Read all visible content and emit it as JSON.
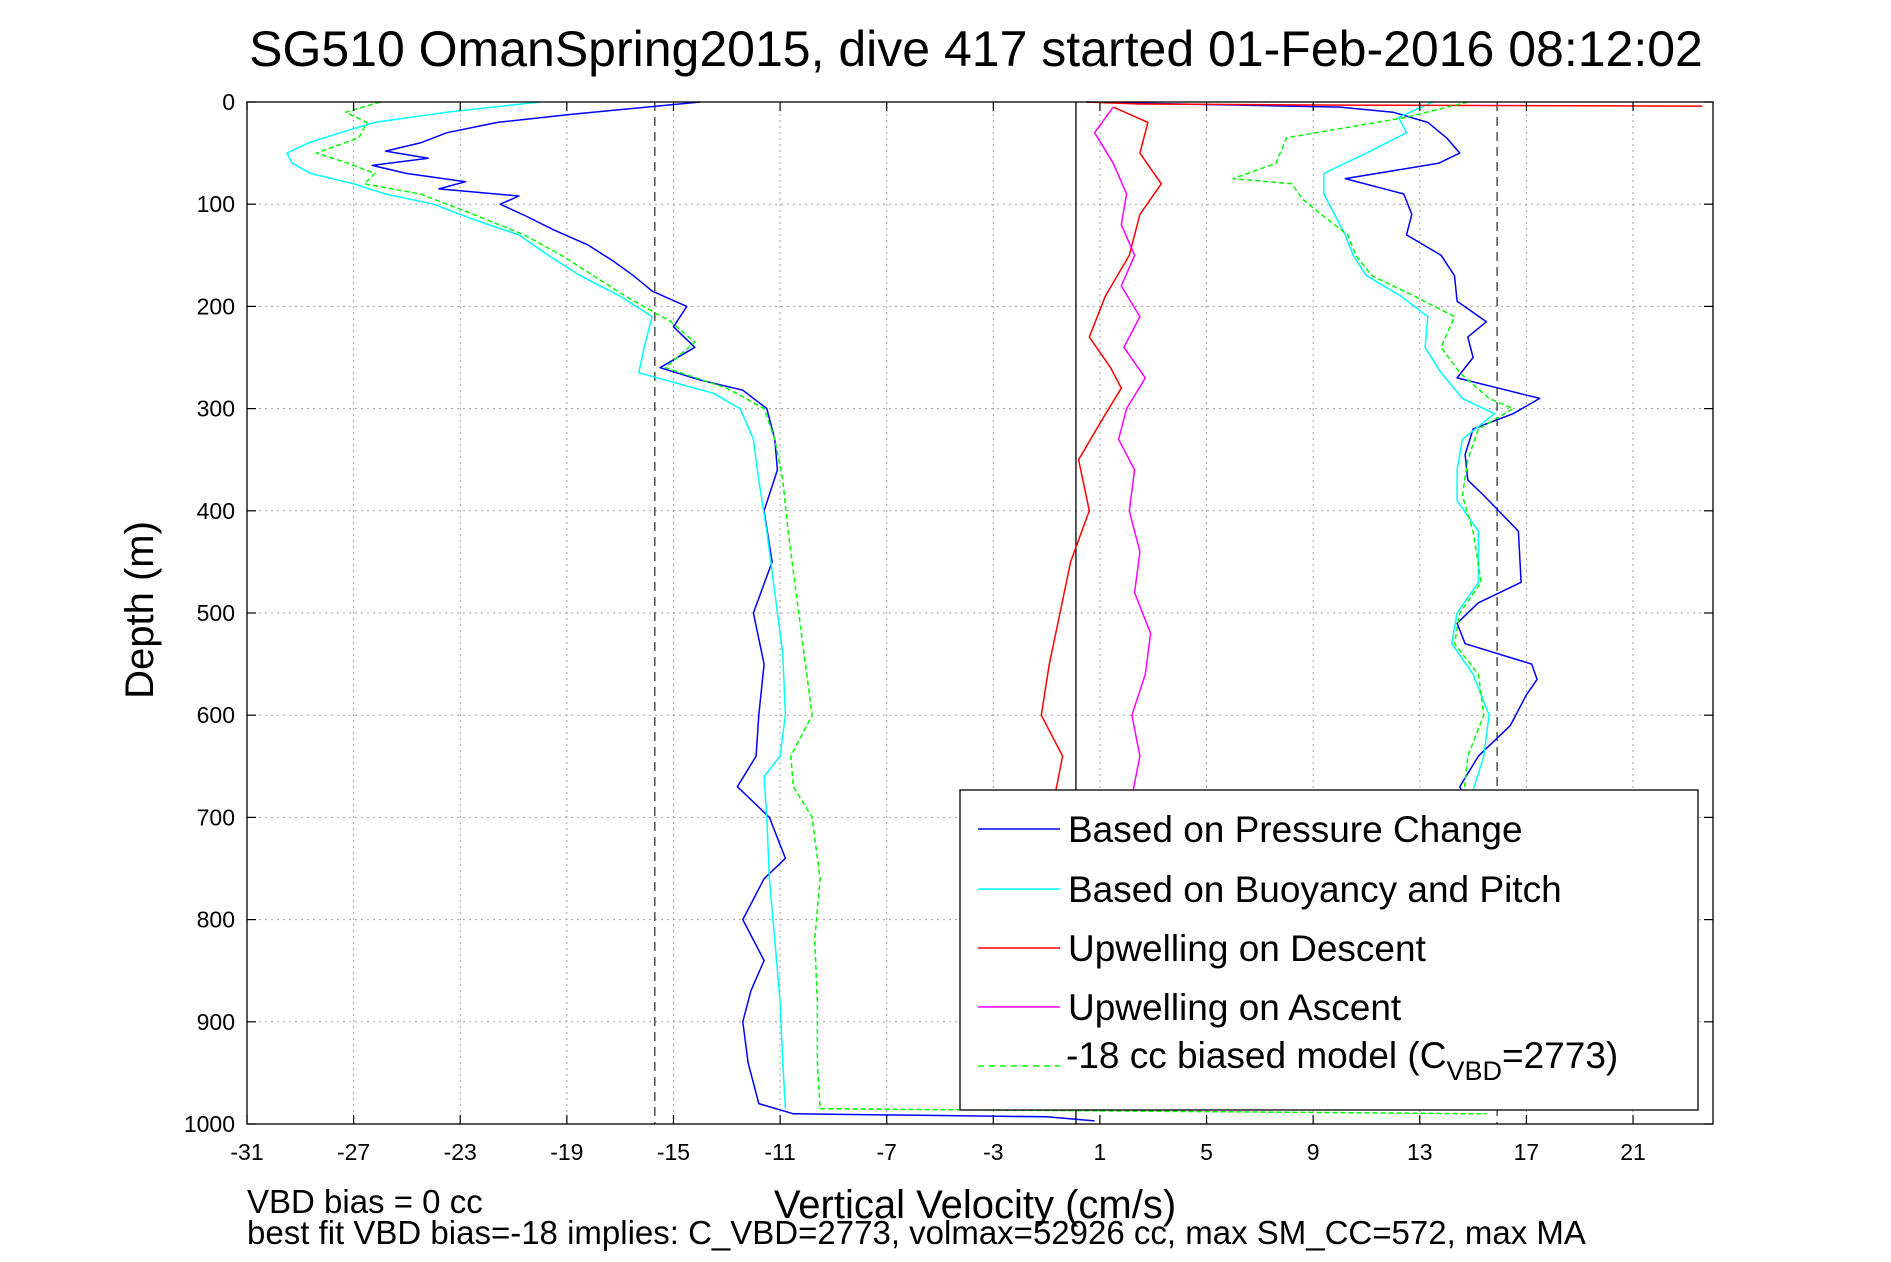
{
  "chart_data": {
    "type": "line",
    "title": "SG510 OmanSpring2015, dive 417 started 01-Feb-2016 08:12:02",
    "xlabel": "Vertical Velocity (cm/s)",
    "ylabel": "Depth (m)",
    "xlim": [
      -31,
      24
    ],
    "ylim": [
      0,
      1000
    ],
    "y_reversed": true,
    "grid": true,
    "x_ticks": [
      -31,
      -27,
      -23,
      -19,
      -15,
      -11,
      -7,
      -3,
      1,
      5,
      9,
      13,
      17,
      21
    ],
    "x_tick_labels": [
      "-31",
      "-27",
      "-23",
      "-19",
      "-15",
      "-11",
      "-7",
      "-3",
      "1",
      "5",
      "9",
      "13",
      "17",
      "21"
    ],
    "y_ticks": [
      0,
      100,
      200,
      300,
      400,
      500,
      600,
      700,
      800,
      900,
      1000
    ],
    "y_tick_labels": [
      "0",
      "100",
      "200",
      "300",
      "400",
      "500",
      "600",
      "700",
      "800",
      "900",
      "1000"
    ],
    "reference_lines": {
      "dashed": [
        -15.7,
        15.9
      ],
      "solid": [
        0.1
      ]
    },
    "legend_position": "bottom-right",
    "series": [
      {
        "name": "Based on Pressure Change",
        "color": "#0000ff",
        "segments": [
          [
            [
              -14,
              0
            ],
            [
              -18.8,
              12
            ],
            [
              -21.6,
              20
            ],
            [
              -23.5,
              30
            ],
            [
              -24.5,
              40
            ],
            [
              -25.8,
              48
            ],
            [
              -24.2,
              55
            ],
            [
              -26.3,
              62
            ],
            [
              -25,
              70
            ],
            [
              -22.8,
              78
            ],
            [
              -23.8,
              85
            ],
            [
              -20.8,
              92
            ],
            [
              -21.5,
              100
            ],
            [
              -20.5,
              112
            ],
            [
              -19.5,
              125
            ],
            [
              -18.2,
              140
            ],
            [
              -17.3,
              155
            ],
            [
              -16.5,
              170
            ],
            [
              -15.8,
              185
            ],
            [
              -14.5,
              200
            ],
            [
              -15,
              220
            ],
            [
              -14.2,
              240
            ],
            [
              -15.5,
              260
            ],
            [
              -14,
              272
            ],
            [
              -12.4,
              282
            ],
            [
              -11.5,
              300
            ],
            [
              -11.2,
              330
            ],
            [
              -11.1,
              360
            ],
            [
              -11.6,
              400
            ],
            [
              -11.3,
              450
            ],
            [
              -12,
              500
            ],
            [
              -11.6,
              550
            ],
            [
              -11.8,
              600
            ],
            [
              -11.9,
              640
            ],
            [
              -12.6,
              670
            ],
            [
              -11.4,
              700
            ],
            [
              -10.8,
              740
            ],
            [
              -11.6,
              760
            ],
            [
              -12.4,
              800
            ],
            [
              -11.6,
              840
            ],
            [
              -12.1,
              870
            ],
            [
              -12.4,
              900
            ],
            [
              -12.2,
              940
            ],
            [
              -11.8,
              980
            ],
            [
              -10.5,
              990
            ],
            [
              -1,
              993
            ],
            [
              0.8,
              997
            ]
          ],
          [
            [
              0.5,
              0
            ],
            [
              4,
              2
            ],
            [
              10,
              5
            ],
            [
              12,
              10
            ],
            [
              13.3,
              20
            ],
            [
              14,
              35
            ],
            [
              14.5,
              50
            ],
            [
              13.7,
              60
            ],
            [
              10.2,
              75
            ],
            [
              12.4,
              90
            ],
            [
              12.7,
              110
            ],
            [
              12.5,
              130
            ],
            [
              13.8,
              150
            ],
            [
              14.3,
              170
            ],
            [
              14.4,
              195
            ],
            [
              15.5,
              215
            ],
            [
              14.8,
              230
            ],
            [
              15,
              250
            ],
            [
              14.4,
              270
            ],
            [
              17.5,
              290
            ],
            [
              16.5,
              305
            ],
            [
              15,
              320
            ],
            [
              14.7,
              345
            ],
            [
              14.8,
              370
            ],
            [
              15.4,
              385
            ],
            [
              16.7,
              420
            ],
            [
              16.8,
              470
            ],
            [
              15.2,
              490
            ],
            [
              14.4,
              510
            ],
            [
              14.7,
              530
            ],
            [
              17.2,
              550
            ],
            [
              17.4,
              565
            ],
            [
              17,
              580
            ],
            [
              16.4,
              610
            ],
            [
              15.2,
              640
            ],
            [
              14.5,
              670
            ],
            [
              14.8,
              690
            ]
          ]
        ]
      },
      {
        "name": "Based on Buoyancy and Pitch",
        "color": "#00ffff",
        "segments": [
          [
            [
              -20,
              0
            ],
            [
              -23.5,
              10
            ],
            [
              -26.2,
              20
            ],
            [
              -27.5,
              30
            ],
            [
              -28.7,
              40
            ],
            [
              -29.5,
              50
            ],
            [
              -29.3,
              60
            ],
            [
              -28.6,
              70
            ],
            [
              -27,
              80
            ],
            [
              -25.8,
              90
            ],
            [
              -24,
              100
            ],
            [
              -22.5,
              115
            ],
            [
              -20.8,
              130
            ],
            [
              -19.7,
              150
            ],
            [
              -18.5,
              170
            ],
            [
              -17,
              190
            ],
            [
              -15.8,
              210
            ],
            [
              -16.1,
              240
            ],
            [
              -16.3,
              265
            ],
            [
              -13.5,
              285
            ],
            [
              -12.5,
              300
            ],
            [
              -12,
              330
            ],
            [
              -11.8,
              370
            ],
            [
              -11.5,
              420
            ],
            [
              -11.2,
              480
            ],
            [
              -10.9,
              540
            ],
            [
              -10.8,
              600
            ],
            [
              -11,
              640
            ],
            [
              -11.6,
              660
            ],
            [
              -11.5,
              700
            ],
            [
              -11.4,
              760
            ],
            [
              -11.2,
              820
            ],
            [
              -11,
              880
            ],
            [
              -10.9,
              940
            ],
            [
              -10.8,
              985
            ]
          ],
          [
            [
              13.5,
              0
            ],
            [
              12.2,
              15
            ],
            [
              12.5,
              30
            ],
            [
              11,
              50
            ],
            [
              9.4,
              70
            ],
            [
              9.4,
              90
            ],
            [
              9.8,
              110
            ],
            [
              10.2,
              130
            ],
            [
              10.5,
              150
            ],
            [
              11,
              170
            ],
            [
              12.3,
              190
            ],
            [
              13.3,
              210
            ],
            [
              13.2,
              240
            ],
            [
              13.8,
              265
            ],
            [
              14.6,
              290
            ],
            [
              15.8,
              305
            ],
            [
              14.6,
              330
            ],
            [
              14.4,
              360
            ],
            [
              14.4,
              390
            ],
            [
              15.2,
              420
            ],
            [
              15.2,
              470
            ],
            [
              14.4,
              500
            ],
            [
              14.2,
              530
            ],
            [
              15,
              560
            ],
            [
              15.6,
              600
            ],
            [
              15.4,
              640
            ],
            [
              14.8,
              690
            ]
          ]
        ]
      },
      {
        "name": "Upwelling on Descent",
        "color": "#ff0000",
        "segments": [
          [
            [
              0.5,
              0
            ],
            [
              2.5,
              2
            ],
            [
              10,
              3
            ],
            [
              23.6,
              4
            ]
          ],
          [
            [
              1.5,
              5
            ],
            [
              2.8,
              20
            ],
            [
              2.5,
              50
            ],
            [
              3.3,
              80
            ],
            [
              2.5,
              110
            ],
            [
              2.1,
              150
            ],
            [
              1.2,
              190
            ],
            [
              0.6,
              230
            ],
            [
              1.4,
              260
            ],
            [
              1.8,
              280
            ],
            [
              1.1,
              310
            ],
            [
              0.2,
              350
            ],
            [
              0.6,
              400
            ],
            [
              -0.1,
              450
            ],
            [
              -0.5,
              500
            ],
            [
              -0.9,
              550
            ],
            [
              -1.2,
              600
            ],
            [
              -0.4,
              640
            ],
            [
              -0.7,
              680
            ]
          ]
        ]
      },
      {
        "name": "Upwelling on Ascent",
        "color": "#ff00ff",
        "segments": [
          [
            [
              1.5,
              5
            ],
            [
              0.8,
              30
            ],
            [
              1.5,
              60
            ],
            [
              2,
              90
            ],
            [
              1.8,
              120
            ],
            [
              2.3,
              150
            ],
            [
              1.8,
              180
            ],
            [
              2.5,
              210
            ],
            [
              1.9,
              240
            ],
            [
              2.7,
              270
            ],
            [
              2,
              300
            ],
            [
              1.7,
              330
            ],
            [
              2.3,
              360
            ],
            [
              2.1,
              400
            ],
            [
              2.5,
              440
            ],
            [
              2.3,
              480
            ],
            [
              2.9,
              520
            ],
            [
              2.7,
              560
            ],
            [
              2.2,
              600
            ],
            [
              2.5,
              640
            ],
            [
              2.2,
              680
            ]
          ]
        ]
      },
      {
        "name": "-18 cc biased model (C_VBD=2773)",
        "color": "#00ff00",
        "segments": [
          [
            [
              -26,
              0
            ],
            [
              -27.3,
              10
            ],
            [
              -26.5,
              20
            ],
            [
              -26.8,
              35
            ],
            [
              -28.4,
              50
            ],
            [
              -27.2,
              60
            ],
            [
              -26.2,
              70
            ],
            [
              -26.6,
              80
            ],
            [
              -24.5,
              90
            ],
            [
              -22.5,
              110
            ],
            [
              -20.6,
              130
            ],
            [
              -19.2,
              150
            ],
            [
              -18,
              170
            ],
            [
              -16.8,
              190
            ],
            [
              -15.1,
              215
            ],
            [
              -14.2,
              235
            ],
            [
              -15.3,
              260
            ],
            [
              -13,
              280
            ],
            [
              -11.6,
              300
            ],
            [
              -11.2,
              330
            ],
            [
              -10.9,
              370
            ],
            [
              -10.7,
              420
            ],
            [
              -10.4,
              480
            ],
            [
              -10.1,
              540
            ],
            [
              -9.8,
              600
            ],
            [
              -10.6,
              640
            ],
            [
              -10.5,
              670
            ],
            [
              -9.8,
              700
            ],
            [
              -9.5,
              760
            ],
            [
              -9.7,
              820
            ],
            [
              -9.6,
              880
            ],
            [
              -9.6,
              940
            ],
            [
              -9.5,
              985
            ],
            [
              15.5,
              990
            ]
          ],
          [
            [
              14.8,
              0
            ],
            [
              12.5,
              15
            ],
            [
              8,
              35
            ],
            [
              7.6,
              60
            ],
            [
              6,
              75
            ],
            [
              8.2,
              80
            ],
            [
              8.6,
              95
            ],
            [
              9.3,
              110
            ],
            [
              10.3,
              130
            ],
            [
              10.6,
              150
            ],
            [
              11.2,
              170
            ],
            [
              12.8,
              190
            ],
            [
              14.3,
              210
            ],
            [
              13.8,
              240
            ],
            [
              14.5,
              265
            ],
            [
              15.6,
              290
            ],
            [
              16.5,
              300
            ],
            [
              15.2,
              320
            ],
            [
              14.8,
              350
            ],
            [
              14.6,
              385
            ],
            [
              15,
              420
            ],
            [
              15.3,
              470
            ],
            [
              14.5,
              500
            ],
            [
              14.3,
              530
            ],
            [
              15.2,
              560
            ],
            [
              15.4,
              600
            ],
            [
              14.8,
              640
            ],
            [
              14.6,
              690
            ]
          ]
        ]
      }
    ],
    "annotations": [
      "VBD bias = 0 cc",
      "best fit VBD bias=-18 implies: C_VBD=2773, volmax=52926 cc, max SM_CC=572, max MA"
    ]
  },
  "legend_labels": {
    "pressure": "Based on Pressure Change",
    "buoyancy": "Based on Buoyancy and Pitch",
    "descent": "Upwelling on Descent",
    "ascent": "Upwelling on Ascent",
    "model_prefix": "-18 cc biased model (C",
    "model_sub": "VBD",
    "model_suffix": "=2773)"
  }
}
